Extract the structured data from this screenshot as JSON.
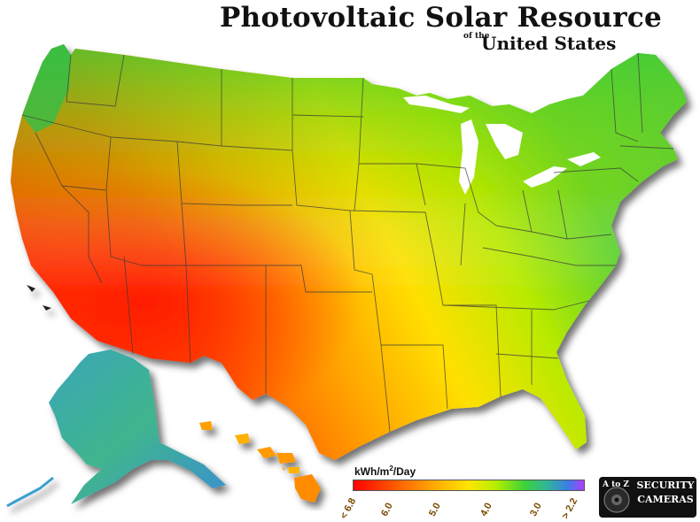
{
  "title": {
    "main": "Photovoltaic Solar Resource",
    "of_the": "of the",
    "country": "United States"
  },
  "legend": {
    "unit_label": "kWh/m",
    "unit_sup": "2",
    "unit_suffix": "/Day",
    "ticks": [
      "< 6.8",
      "6.0",
      "5.0",
      "4.0",
      "3.0",
      "> 2.2"
    ],
    "gradient_colors": [
      "#ff0000",
      "#ff5a00",
      "#ffaa00",
      "#ffe600",
      "#b4ee00",
      "#3ed238",
      "#2fb59a",
      "#3a7ee6",
      "#b03cff"
    ]
  },
  "logo": {
    "mark": "A to Z",
    "line1": "SECURITY",
    "line2": "CAMERAS"
  },
  "map": {
    "regions": [
      "contiguous-us",
      "alaska",
      "hawaii"
    ],
    "colors": {
      "southwest_high": "#ff2000",
      "plains": "#ffcc00",
      "northeast_low": "#33cc33",
      "northwest_coast": "#22bb55",
      "alaska": "#3fb29b",
      "state_lines": "#333333"
    }
  }
}
